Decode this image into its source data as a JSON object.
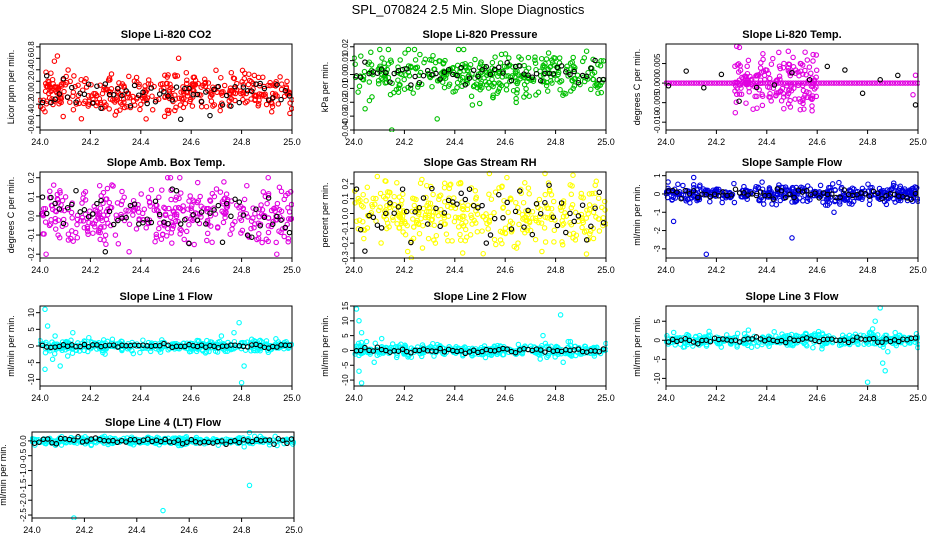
{
  "page": {
    "title": "SPL_070824  2.5 Min. Slope Diagnostics"
  },
  "chart_data": [
    {
      "id": "p1",
      "type": "scatter",
      "title": "Slope Li-820 CO2",
      "ylabel": "Licor ppm per min.",
      "color": "#ff0000",
      "xlim": [
        24.0,
        25.0
      ],
      "ylim": [
        -0.65,
        0.85
      ],
      "xticks": [
        24.0,
        24.2,
        24.4,
        24.6,
        24.8,
        25.0
      ],
      "yticks": [
        -0.6,
        -0.4,
        -0.2,
        0.0,
        0.2,
        0.4,
        0.6,
        0.8
      ],
      "ytick_labels": [
        "-0.6",
        "-0.4",
        "-0.2",
        "0.0",
        "0.2",
        "0.4",
        "0.6",
        "0.8"
      ],
      "noise": {
        "n": 380,
        "sd": 0.18,
        "min": -0.6,
        "max": 0.65,
        "x0": 24.0,
        "x1": 25.0,
        "seed": 11
      },
      "black": {
        "n": 60,
        "sd": 0.15,
        "seed": 12
      },
      "outliers": [
        [
          24.55,
          0.6
        ]
      ]
    },
    {
      "id": "p2",
      "type": "scatter",
      "title": "Slope Li-820 Pressure",
      "ylabel": "kPa per min.",
      "color": "#00c000",
      "xlim": [
        24.0,
        25.0
      ],
      "ylim": [
        -0.04,
        0.022
      ],
      "xticks": [
        24.0,
        24.2,
        24.4,
        24.6,
        24.8,
        25.0
      ],
      "yticks": [
        -0.04,
        -0.03,
        -0.02,
        -0.01,
        0.0,
        0.01,
        0.02
      ],
      "ytick_labels": [
        "-0.04",
        "-0.03",
        "-0.02",
        "-0.01",
        "0.00",
        "0.01",
        "0.02"
      ],
      "noise": {
        "n": 380,
        "sd": 0.008,
        "min": -0.03,
        "max": 0.018,
        "x0": 24.0,
        "x1": 25.0,
        "seed": 21
      },
      "black": {
        "n": 60,
        "sd": 0.004,
        "seed": 22
      },
      "outliers": [
        [
          24.15,
          -0.04
        ],
        [
          24.33,
          -0.032
        ],
        [
          24.47,
          -0.022
        ]
      ]
    },
    {
      "id": "p3",
      "type": "scatter",
      "title": "Slope Li-820 Temp.",
      "ylabel": "degrees C per min.",
      "color": "#e000e0",
      "xlim": [
        24.0,
        25.0
      ],
      "ylim": [
        -0.012,
        0.01
      ],
      "xticks": [
        24.0,
        24.2,
        24.4,
        24.6,
        24.8,
        25.0
      ],
      "yticks": [
        -0.01,
        -0.005,
        0.0,
        0.005
      ],
      "ytick_labels": [
        "-0.010",
        "-0.005",
        "0.000",
        "0.005"
      ],
      "flat": {
        "x0": 24.0,
        "x1": 25.0,
        "y": 0.0,
        "n": 100,
        "seed": 31
      },
      "noise": {
        "n": 180,
        "sd": 0.004,
        "min": -0.011,
        "max": 0.01,
        "x0": 24.27,
        "x1": 24.6,
        "seed": 32
      },
      "black": {
        "n": 15,
        "sd": 0.003,
        "seed": 33
      },
      "outliers": [
        [
          24.99,
          0.002
        ],
        [
          24.98,
          -0.003
        ]
      ]
    },
    {
      "id": "p4",
      "type": "scatter",
      "title": "Slope Amb. Box Temp.",
      "ylabel": "degrees C per min.",
      "color": "#e000e0",
      "xlim": [
        24.0,
        25.0
      ],
      "ylim": [
        -0.22,
        0.23
      ],
      "xticks": [
        24.0,
        24.2,
        24.4,
        24.6,
        24.8,
        25.0
      ],
      "yticks": [
        -0.2,
        -0.1,
        0.0,
        0.1,
        0.2
      ],
      "ytick_labels": [
        "-0.2",
        "-0.1",
        "0.0",
        "0.1",
        "0.2"
      ],
      "noise": {
        "n": 380,
        "sd": 0.08,
        "min": -0.2,
        "max": 0.2,
        "x0": 24.0,
        "x1": 25.0,
        "seed": 41
      },
      "black": {
        "n": 60,
        "sd": 0.07,
        "seed": 42
      },
      "outliers": []
    },
    {
      "id": "p5",
      "type": "scatter",
      "title": "Slope Gas Stream RH",
      "ylabel": "percent per min.",
      "color": "#ffff00",
      "xlim": [
        24.0,
        25.0
      ],
      "ylim": [
        -0.3,
        0.28
      ],
      "xticks": [
        24.0,
        24.2,
        24.4,
        24.6,
        24.8,
        25.0
      ],
      "yticks": [
        -0.3,
        -0.2,
        -0.1,
        0.0,
        0.1,
        0.2
      ],
      "ytick_labels": [
        "-0.3",
        "-0.2",
        "-0.1",
        "0.0",
        "0.1",
        "0.2"
      ],
      "noise": {
        "n": 380,
        "sd": 0.11,
        "min": -0.3,
        "max": 0.27,
        "x0": 24.0,
        "x1": 25.0,
        "seed": 51
      },
      "black": {
        "n": 60,
        "sd": 0.1,
        "seed": 52
      },
      "outliers": []
    },
    {
      "id": "p6",
      "type": "scatter",
      "title": "Slope Sample Flow",
      "ylabel": "ml/min per min.",
      "color": "#0000e0",
      "xlim": [
        24.0,
        25.0
      ],
      "ylim": [
        -3.5,
        1.2
      ],
      "xticks": [
        24.0,
        24.2,
        24.4,
        24.6,
        24.8,
        25.0
      ],
      "yticks": [
        -3,
        -2,
        -1,
        0,
        1
      ],
      "ytick_labels": [
        "-3",
        "-2",
        "-1",
        "0",
        "1"
      ],
      "noise": {
        "n": 420,
        "sd": 0.25,
        "min": -1.0,
        "max": 1.0,
        "x0": 24.0,
        "x1": 25.0,
        "seed": 61
      },
      "black": {
        "n": 60,
        "sd": 0.12,
        "seed": 62
      },
      "outliers": [
        [
          24.16,
          -3.3
        ],
        [
          24.03,
          -1.5
        ],
        [
          24.5,
          -2.4
        ],
        [
          24.11,
          0.9
        ]
      ]
    },
    {
      "id": "p7",
      "type": "scatter",
      "title": "Slope Line 1 Flow",
      "ylabel": "ml/min per min.",
      "color": "#00ffff",
      "xlim": [
        24.0,
        25.0
      ],
      "ylim": [
        -12,
        12
      ],
      "xticks": [
        24.0,
        24.2,
        24.4,
        24.6,
        24.8,
        25.0
      ],
      "yticks": [
        -10,
        -5,
        0,
        5,
        10
      ],
      "ytick_labels": [
        "-10",
        "-5",
        "0",
        "5",
        "10"
      ],
      "noise": {
        "n": 380,
        "sd": 0.9,
        "min": -2.5,
        "max": 2.5,
        "x0": 24.0,
        "x1": 25.0,
        "seed": 71
      },
      "black": {
        "n": 60,
        "sd": 0.3,
        "seed": 72
      },
      "outliers": [
        [
          24.02,
          11
        ],
        [
          24.03,
          6
        ],
        [
          24.05,
          -4
        ],
        [
          24.06,
          3
        ],
        [
          24.08,
          -6
        ],
        [
          24.11,
          -3
        ],
        [
          24.13,
          4
        ],
        [
          24.02,
          -7
        ],
        [
          24.72,
          3
        ],
        [
          24.77,
          4
        ],
        [
          24.79,
          7
        ],
        [
          24.81,
          -6
        ],
        [
          24.8,
          -11
        ],
        [
          24.84,
          2
        ]
      ]
    },
    {
      "id": "p8",
      "type": "scatter",
      "title": "Slope Line 2 Flow",
      "ylabel": "ml/min per min.",
      "color": "#00ffff",
      "xlim": [
        24.0,
        25.0
      ],
      "ylim": [
        -12,
        15
      ],
      "xticks": [
        24.0,
        24.2,
        24.4,
        24.6,
        24.8,
        25.0
      ],
      "yticks": [
        -10,
        -5,
        0,
        5,
        10,
        15
      ],
      "ytick_labels": [
        "-10",
        "-5",
        "0",
        "5",
        "10",
        "15"
      ],
      "noise": {
        "n": 380,
        "sd": 1.0,
        "min": -3,
        "max": 3,
        "x0": 24.0,
        "x1": 25.0,
        "seed": 81
      },
      "black": {
        "n": 60,
        "sd": 0.4,
        "seed": 82
      },
      "outliers": [
        [
          24.01,
          14
        ],
        [
          24.02,
          10
        ],
        [
          24.03,
          6
        ],
        [
          24.02,
          -7
        ],
        [
          24.03,
          -11
        ],
        [
          24.05,
          3
        ],
        [
          24.08,
          -4
        ],
        [
          24.11,
          4
        ],
        [
          24.75,
          5
        ],
        [
          24.82,
          12
        ],
        [
          24.83,
          -4
        ],
        [
          24.85,
          3
        ]
      ]
    },
    {
      "id": "p9",
      "type": "scatter",
      "title": "Slope Line 3 Flow",
      "ylabel": "ml/min per min.",
      "color": "#00ffff",
      "xlim": [
        24.0,
        25.0
      ],
      "ylim": [
        -12,
        9
      ],
      "xticks": [
        24.0,
        24.2,
        24.4,
        24.6,
        24.8,
        25.0
      ],
      "yticks": [
        -10,
        -5,
        0,
        5
      ],
      "ytick_labels": [
        "-10",
        "-5",
        "0",
        "5"
      ],
      "noise": {
        "n": 380,
        "sd": 0.9,
        "min": -3,
        "max": 3,
        "x0": 24.0,
        "x1": 25.0,
        "seed": 91
      },
      "black": {
        "n": 60,
        "sd": 0.4,
        "seed": 92
      },
      "outliers": [
        [
          24.85,
          8.5
        ],
        [
          24.83,
          5
        ],
        [
          24.86,
          -6
        ],
        [
          24.87,
          -8
        ],
        [
          24.8,
          -11
        ],
        [
          24.82,
          3
        ],
        [
          24.88,
          -3
        ]
      ]
    },
    {
      "id": "p10",
      "type": "scatter",
      "title": "Slope Line 4 (LT) Flow",
      "ylabel": "ml/min per min.",
      "color": "#00ffff",
      "xlim": [
        24.0,
        25.0
      ],
      "ylim": [
        -2.6,
        0.3
      ],
      "xticks": [
        24.0,
        24.2,
        24.4,
        24.6,
        24.8,
        25.0
      ],
      "yticks": [
        -2.5,
        -2.0,
        -1.5,
        -1.0,
        -0.5,
        0.0
      ],
      "ytick_labels": [
        "-2.5",
        "-2.0",
        "-1.5",
        "-1.0",
        "-0.5",
        "0.0"
      ],
      "noise": {
        "n": 380,
        "sd": 0.06,
        "min": -0.2,
        "max": 0.15,
        "x0": 24.0,
        "x1": 25.0,
        "seed": 101
      },
      "black": {
        "n": 60,
        "sd": 0.05,
        "seed": 102
      },
      "outliers": [
        [
          24.16,
          -2.6
        ],
        [
          24.5,
          -2.35
        ],
        [
          24.83,
          -1.5
        ],
        [
          24.81,
          -0.2
        ],
        [
          24.83,
          0.28
        ],
        [
          24.85,
          0.15
        ]
      ]
    }
  ]
}
